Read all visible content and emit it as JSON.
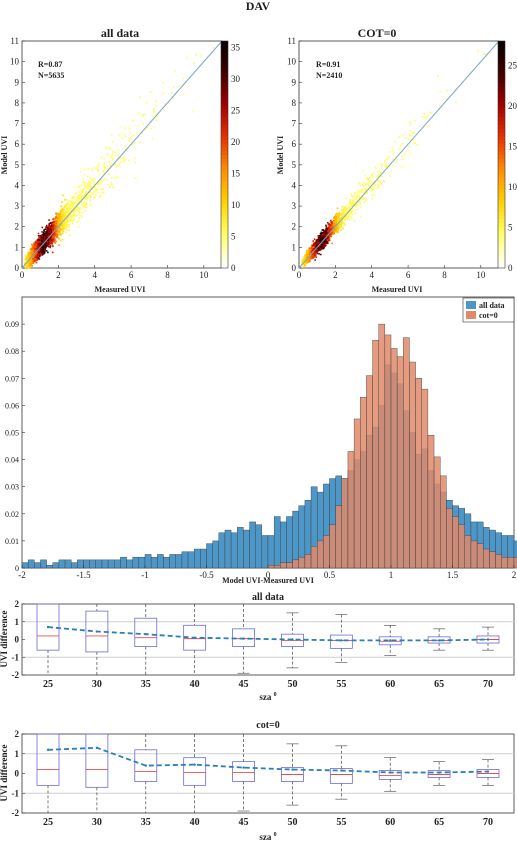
{
  "figure_title": "DAV",
  "chart_data": [
    {
      "id": "scatter_all",
      "type": "heatmap",
      "title": "all data",
      "xlabel": "Measured UVI",
      "ylabel": "Model UVI",
      "xlim": [
        0,
        11
      ],
      "ylim": [
        0,
        11
      ],
      "xticks": [
        0,
        2,
        4,
        6,
        8,
        10
      ],
      "yticks": [
        0,
        1,
        2,
        3,
        4,
        5,
        6,
        7,
        8,
        9,
        10,
        11
      ],
      "annotations": [
        "R=0.87",
        "N=5635"
      ],
      "colorbar": {
        "min": 0,
        "max": 36,
        "ticks": [
          0,
          5,
          10,
          15,
          20,
          25,
          30,
          35
        ]
      },
      "colormap": [
        "#ffffff",
        "#ffff66",
        "#ffd200",
        "#ff8c00",
        "#e63200",
        "#a00000",
        "#3c0000",
        "#000000"
      ]
    },
    {
      "id": "scatter_cot0",
      "type": "heatmap",
      "title": "COT=0",
      "xlabel": "Measured UVI",
      "ylabel": "Model UVI",
      "xlim": [
        0,
        11
      ],
      "ylim": [
        0,
        11
      ],
      "xticks": [
        0,
        2,
        4,
        6,
        8,
        10
      ],
      "yticks": [
        0,
        1,
        2,
        3,
        4,
        5,
        6,
        7,
        8,
        9,
        10,
        11
      ],
      "annotations": [
        "R=0.91",
        "N=2410"
      ],
      "colorbar": {
        "min": 0,
        "max": 28,
        "ticks": [
          0,
          5,
          10,
          15,
          20,
          25
        ]
      },
      "colormap": [
        "#ffffff",
        "#ffff66",
        "#ffd200",
        "#ff8c00",
        "#e63200",
        "#a00000",
        "#3c0000",
        "#000000"
      ]
    },
    {
      "id": "histogram",
      "type": "bar",
      "xlabel": "Model UVI-Measured UVI",
      "xlim": [
        -2,
        2
      ],
      "ylim": [
        0,
        0.1
      ],
      "xticks": [
        -2,
        -1.5,
        -1,
        -0.5,
        0,
        0.5,
        1,
        1.5,
        2
      ],
      "yticks": [
        0,
        0.01,
        0.02,
        0.03,
        0.04,
        0.05,
        0.06,
        0.07,
        0.08,
        0.09
      ],
      "legend": "top-right",
      "bin_edges_start": -2,
      "bin_width": 0.05,
      "series": [
        {
          "name": "all data",
          "color": "#4d96c8",
          "values": [
            0.002,
            0.003,
            0.002,
            0.003,
            0.001,
            0.002,
            0.003,
            0.003,
            0.002,
            0.003,
            0.003,
            0.003,
            0.003,
            0.003,
            0.003,
            0.003,
            0.004,
            0.003,
            0.004,
            0.004,
            0.005,
            0.004,
            0.005,
            0.004,
            0.005,
            0.005,
            0.006,
            0.006,
            0.007,
            0.007,
            0.009,
            0.01,
            0.013,
            0.014,
            0.013,
            0.015,
            0.014,
            0.017,
            0.016,
            0.012,
            0.012,
            0.019,
            0.017,
            0.019,
            0.021,
            0.023,
            0.025,
            0.03,
            0.028,
            0.031,
            0.033,
            0.034,
            0.033,
            0.036,
            0.04,
            0.043,
            0.049,
            0.052,
            0.06,
            0.075,
            0.072,
            0.068,
            0.058,
            0.05,
            0.042,
            0.044,
            0.036,
            0.031,
            0.028,
            0.025,
            0.023,
            0.022,
            0.02,
            0.017,
            0.017,
            0.015,
            0.014,
            0.013,
            0.012,
            0.012,
            0.01,
            0.01,
            0.009,
            0.008,
            0.009,
            0.009,
            0.008,
            0.007,
            0.007,
            0.006,
            0.006,
            0.005,
            0.005,
            0.005,
            0.004,
            0.004,
            0.004,
            0.003,
            0.003,
            0.003,
            0.003,
            0.003,
            0.002,
            0.003,
            0.003,
            0.003,
            0.002,
            0.002,
            0.002,
            0.002,
            0.002,
            0.003,
            0.002,
            0.002,
            0.002,
            0.002,
            0.002,
            0.002,
            0.002,
            0.001
          ]
        },
        {
          "name": "cot=0",
          "color": "#e08a6a",
          "values": [
            0,
            0,
            0,
            0,
            0,
            0,
            0,
            0,
            0,
            0,
            0,
            0,
            0,
            0,
            0,
            0,
            0,
            0,
            0,
            0,
            0,
            0,
            0,
            0,
            0,
            0,
            0,
            0,
            0,
            0,
            0,
            0,
            0,
            0,
            0,
            0,
            0,
            0,
            0,
            0,
            0.001,
            0.001,
            0.002,
            0.002,
            0.003,
            0.004,
            0.005,
            0.008,
            0.01,
            0.012,
            0.016,
            0.023,
            0.033,
            0.043,
            0.055,
            0.063,
            0.071,
            0.084,
            0.09,
            0.086,
            0.081,
            0.078,
            0.085,
            0.076,
            0.07,
            0.066,
            0.049,
            0.041,
            0.034,
            0.022,
            0.019,
            0.016,
            0.012,
            0.01,
            0.009,
            0.007,
            0.006,
            0.005,
            0.004,
            0.004,
            0.004,
            0.003,
            0.003,
            0.003,
            0.002,
            0.002,
            0.002,
            0.002,
            0.002,
            0.002,
            0.002,
            0.002,
            0.002,
            0.002,
            0.002,
            0.002,
            0.002,
            0.002,
            0.002,
            0.002,
            0.002,
            0.002,
            0.002,
            0.002,
            0.002,
            0.002,
            0.002,
            0.002,
            0.002,
            0.002,
            0.002,
            0.002,
            0.002,
            0.002,
            0.002,
            0.002,
            0.002,
            0.002,
            0.002,
            0.001
          ]
        }
      ]
    },
    {
      "id": "box_all",
      "type": "box",
      "title": "all data",
      "xlabel": "sza 0",
      "ylabel": "UVI difference",
      "ylim": [
        -2,
        2
      ],
      "yticks": [
        -2,
        -1,
        0,
        1,
        2
      ],
      "categories": [
        "25",
        "30",
        "35",
        "40",
        "45",
        "50",
        "55",
        "60",
        "65",
        "70"
      ],
      "boxes": [
        {
          "q1": -0.6,
          "median": 0.2,
          "q3": 2.0,
          "lo": -2.0,
          "hi": 2.0
        },
        {
          "q1": -0.7,
          "median": 0.2,
          "q3": 1.6,
          "lo": -2.0,
          "hi": 2.0
        },
        {
          "q1": -0.4,
          "median": 0.1,
          "q3": 1.2,
          "lo": -2.0,
          "hi": 2.0
        },
        {
          "q1": -0.6,
          "median": 0.05,
          "q3": 0.8,
          "lo": -2.0,
          "hi": 2.0
        },
        {
          "q1": -0.4,
          "median": 0.05,
          "q3": 0.6,
          "lo": -1.9,
          "hi": 2.0
        },
        {
          "q1": -0.4,
          "median": -0.05,
          "q3": 0.3,
          "lo": -1.6,
          "hi": 1.5
        },
        {
          "q1": -0.5,
          "median": -0.05,
          "q3": 0.25,
          "lo": -1.3,
          "hi": 1.4
        },
        {
          "q1": -0.3,
          "median": -0.1,
          "q3": 0.15,
          "lo": -0.9,
          "hi": 0.8
        },
        {
          "q1": -0.2,
          "median": -0.05,
          "q3": 0.15,
          "lo": -0.6,
          "hi": 0.6
        },
        {
          "q1": -0.2,
          "median": 0.0,
          "q3": 0.2,
          "lo": -0.6,
          "hi": 0.7
        }
      ],
      "mean_line": [
        0.7,
        0.45,
        0.3,
        0.1,
        0.05,
        0.0,
        -0.05,
        -0.05,
        -0.05,
        0.0
      ]
    },
    {
      "id": "box_cot0",
      "type": "box",
      "title": "cot=0",
      "xlabel": "sza 0",
      "ylabel": "UVI difference",
      "ylim": [
        -2,
        2
      ],
      "yticks": [
        -2,
        -1,
        0,
        1,
        2
      ],
      "categories": [
        "25",
        "30",
        "35",
        "40",
        "45",
        "50",
        "55",
        "60",
        "65",
        "70"
      ],
      "boxes": [
        {
          "q1": -0.6,
          "median": 0.2,
          "q3": 2.0,
          "lo": -2.0,
          "hi": 2.0
        },
        {
          "q1": -0.7,
          "median": 0.2,
          "q3": 2.0,
          "lo": -2.0,
          "hi": 2.0
        },
        {
          "q1": -0.4,
          "median": 0.1,
          "q3": 1.2,
          "lo": -2.0,
          "hi": 2.0
        },
        {
          "q1": -0.6,
          "median": 0.05,
          "q3": 0.8,
          "lo": -2.0,
          "hi": 2.0
        },
        {
          "q1": -0.4,
          "median": 0.05,
          "q3": 0.6,
          "lo": -1.9,
          "hi": 2.0
        },
        {
          "q1": -0.4,
          "median": -0.05,
          "q3": 0.3,
          "lo": -1.6,
          "hi": 1.5
        },
        {
          "q1": -0.5,
          "median": -0.05,
          "q3": 0.25,
          "lo": -1.3,
          "hi": 1.4
        },
        {
          "q1": -0.3,
          "median": -0.1,
          "q3": 0.15,
          "lo": -0.9,
          "hi": 0.8
        },
        {
          "q1": -0.2,
          "median": -0.05,
          "q3": 0.15,
          "lo": -0.6,
          "hi": 0.6
        },
        {
          "q1": -0.2,
          "median": 0.0,
          "q3": 0.2,
          "lo": -0.6,
          "hi": 0.7
        }
      ],
      "mean_line": [
        1.2,
        1.3,
        0.4,
        0.45,
        0.3,
        0.2,
        0.15,
        0.05,
        0.05,
        0.1
      ]
    }
  ]
}
